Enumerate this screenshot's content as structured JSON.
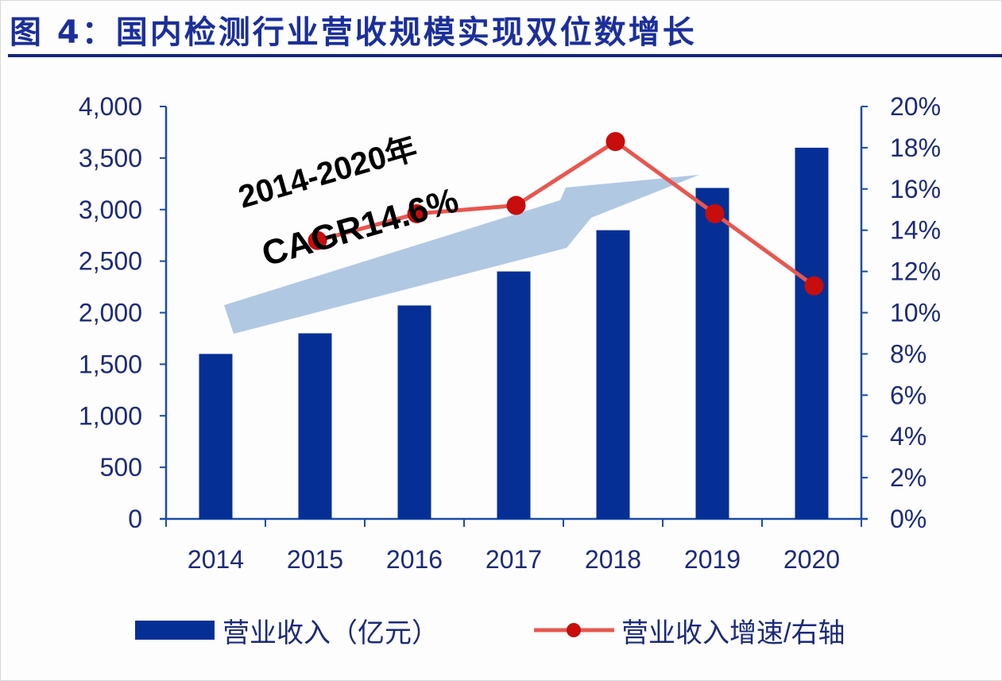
{
  "title": "图 4：国内检测行业营收规模实现双位数增长",
  "annotation": {
    "line1": "2014-2020年",
    "line2": "CAGR14.6%"
  },
  "legend": {
    "bar_label": "营业收入（亿元）",
    "line_label": "营业收入增速/右轴"
  },
  "colors": {
    "bar": "#062f96",
    "line": "#e8574f",
    "marker": "#c80d0d",
    "arrow": "#a9c2e0",
    "axis": "#1a4da6",
    "text": "#1c2a7a"
  },
  "chart_data": {
    "type": "bar",
    "title": "图 4：国内检测行业营收规模实现双位数增长",
    "categories": [
      "2014",
      "2015",
      "2016",
      "2017",
      "2018",
      "2019",
      "2020"
    ],
    "series": [
      {
        "name": "营业收入（亿元）",
        "type": "bar",
        "axis": "left",
        "values": [
          1600,
          1800,
          2070,
          2400,
          2800,
          3210,
          3600
        ]
      },
      {
        "name": "营业收入增速/右轴",
        "type": "line",
        "axis": "right",
        "values": [
          null,
          13.5,
          14.8,
          15.2,
          18.3,
          14.8,
          11.3
        ]
      }
    ],
    "xlabel": "",
    "ylabel": "",
    "ylim": [
      0,
      4000
    ],
    "y2lim": [
      0,
      20
    ],
    "yticks": [
      "0",
      "500",
      "1,000",
      "1,500",
      "2,000",
      "2,500",
      "3,000",
      "3,500",
      "4,000"
    ],
    "y2ticks": [
      "0%",
      "2%",
      "4%",
      "6%",
      "8%",
      "10%",
      "12%",
      "14%",
      "16%",
      "18%",
      "20%"
    ],
    "annotations": [
      "2014-2020年",
      "CAGR14.6%"
    ],
    "grid": false,
    "legend_position": "bottom"
  }
}
